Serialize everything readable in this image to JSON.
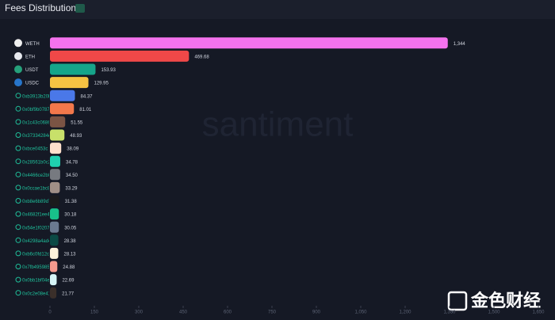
{
  "chart_data": {
    "type": "barh",
    "title": "Fees Distribution",
    "categories": [
      "WETH",
      "ETH",
      "USDT",
      "USDC",
      "0xb3913b20b1",
      "0x0bf9b0787e",
      "0x1c43c0686f",
      "0x37334284e2",
      "0xbce0453c",
      "0x28561b0c2",
      "0x4466ce2b0",
      "0x0ccae1bc8",
      "0xb8e6b89d7f",
      "0x4682f1ee44",
      "0x54e1f0207b",
      "0x4298a4ad4",
      "0xb6c0fd12c5",
      "0x7fb4959850",
      "0x0bb1bf04e",
      "0x0c2e08e41"
    ],
    "values": [
      1344,
      469.68,
      153.93,
      129.95,
      84.37,
      81.01,
      51.55,
      48.93,
      38.09,
      34.78,
      34.5,
      33.29,
      31.38,
      30.18,
      30.05,
      28.38,
      28.13,
      24.88,
      22.69,
      21.77
    ],
    "value_labels": [
      "1,344",
      "469.68",
      "153.93",
      "129.95",
      "84.37",
      "81.01",
      "51.55",
      "48.93",
      "38.09",
      "34.78",
      "34.50",
      "33.29",
      "31.38",
      "30.18",
      "30.05",
      "28.38",
      "28.13",
      "24.88",
      "22.69",
      "21.77"
    ],
    "colors": [
      "#f472ee",
      "#f04848",
      "#16a58a",
      "#f6c343",
      "#4a78e8",
      "#f2784b",
      "#7b5444",
      "#c8e06a",
      "#fde0cc",
      "#1fd0b0",
      "#777a80",
      "#a08f86",
      "#1b1b1d",
      "#18c08a",
      "#6b7a90",
      "#0b4a45",
      "#fdf3dc",
      "#f59a8e",
      "#d7f5f7",
      "#3a2f2a"
    ],
    "xlim": [
      0,
      1650
    ],
    "xticks": [
      0,
      150,
      300,
      450,
      600,
      750,
      900,
      {
        "value": 1050,
        "label": "1,050"
      },
      {
        "value": 1200,
        "label": "1,200"
      },
      {
        "value": 1350,
        "label": "1,350"
      },
      {
        "value": 1500,
        "label": "1,500"
      },
      {
        "value": 1650,
        "label": "1,650"
      }
    ],
    "watermark": "santiment",
    "source_watermark": "金色财经"
  }
}
